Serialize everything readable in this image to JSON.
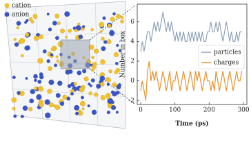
{
  "illustration": {
    "legend": [
      "cation",
      "anion"
    ]
  },
  "chart_data": {
    "type": "line",
    "xlabel": "Time (ps)",
    "ylabel": "Number in box",
    "x": [
      0,
      5,
      10,
      15,
      20,
      25,
      30,
      35,
      40,
      45,
      50,
      55,
      60,
      65,
      70,
      75,
      80,
      85,
      90,
      95,
      100,
      105,
      110,
      115,
      120,
      125,
      130,
      135,
      140,
      145,
      150,
      155,
      160,
      165,
      170,
      175,
      180,
      185,
      190,
      195,
      200,
      205,
      210,
      215,
      220,
      225,
      230,
      235,
      240,
      245,
      250,
      255,
      260,
      265,
      270,
      275,
      280,
      285,
      290,
      295
    ],
    "series": [
      {
        "name": "particles",
        "color": "#8fa3b8",
        "values": [
          3,
          4,
          3,
          4,
          5,
          5,
          4,
          5,
          6,
          5,
          6,
          5,
          6,
          7,
          6,
          5,
          6,
          5,
          6,
          5,
          4,
          5,
          4,
          5,
          4,
          5,
          4,
          4,
          5,
          4,
          5,
          4,
          5,
          4,
          5,
          4,
          5,
          4,
          4,
          5,
          5,
          6,
          5,
          5,
          6,
          5,
          6,
          5,
          4,
          5,
          6,
          5,
          4,
          5,
          4,
          4,
          5,
          4,
          5,
          5
        ]
      },
      {
        "name": "charges",
        "color": "#e8922e",
        "values": [
          -1,
          0,
          -1,
          -2,
          1,
          2,
          0,
          1,
          0,
          1,
          0,
          -1,
          0,
          1,
          0,
          -1,
          0,
          1,
          -1,
          0,
          0,
          1,
          0,
          -1,
          0,
          1,
          0,
          -1,
          0,
          1,
          0,
          -1,
          1,
          0,
          1,
          0,
          -1,
          0,
          1,
          0,
          0,
          -1,
          0,
          -1,
          1,
          0,
          -1,
          0,
          1,
          0,
          -1,
          0,
          1,
          0,
          -1,
          0,
          1,
          0,
          0,
          1
        ]
      }
    ],
    "xlim": [
      -10,
      310
    ],
    "xticks": [
      0,
      100,
      200,
      300
    ],
    "ylim": [
      -2.4,
      7.8
    ],
    "yticks": [
      -2,
      0,
      2,
      4,
      6
    ]
  }
}
